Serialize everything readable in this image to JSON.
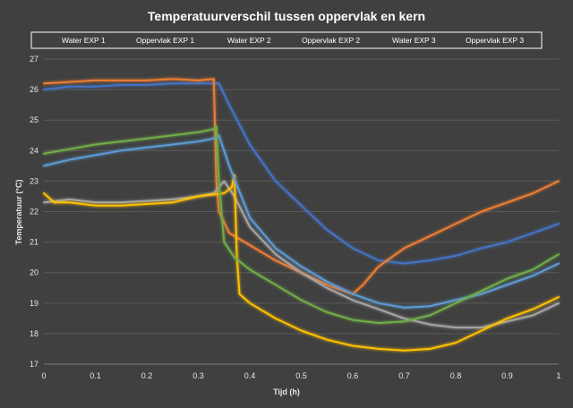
{
  "chart_data": {
    "type": "line",
    "title": "Temperatuurverschil tussen oppervlak en kern",
    "xlabel": "Tijd (h)",
    "ylabel": "Temperatuur (°C)",
    "xlim": [
      0,
      1
    ],
    "ylim": [
      17,
      27
    ],
    "x_ticks": [
      "0",
      "0.1",
      "0.2",
      "0.3",
      "0.4",
      "0.5",
      "0.6",
      "0.7",
      "0.8",
      "0.9",
      "1"
    ],
    "y_ticks": [
      "17",
      "18",
      "19",
      "20",
      "21",
      "22",
      "23",
      "24",
      "25",
      "26",
      "27"
    ],
    "grid": true,
    "legend_position": "top",
    "series": [
      {
        "name": "Water EXP 1",
        "color": "#4472c4",
        "points": [
          [
            0,
            26.0
          ],
          [
            0.05,
            26.1
          ],
          [
            0.1,
            26.1
          ],
          [
            0.15,
            26.15
          ],
          [
            0.2,
            26.15
          ],
          [
            0.25,
            26.2
          ],
          [
            0.3,
            26.2
          ],
          [
            0.33,
            26.2
          ],
          [
            0.34,
            26.2
          ],
          [
            0.36,
            25.5
          ],
          [
            0.4,
            24.2
          ],
          [
            0.45,
            23.0
          ],
          [
            0.5,
            22.2
          ],
          [
            0.55,
            21.4
          ],
          [
            0.6,
            20.8
          ],
          [
            0.65,
            20.4
          ],
          [
            0.7,
            20.3
          ],
          [
            0.75,
            20.4
          ],
          [
            0.8,
            20.55
          ],
          [
            0.85,
            20.8
          ],
          [
            0.9,
            21.0
          ],
          [
            0.95,
            21.3
          ],
          [
            1.0,
            21.6
          ]
        ]
      },
      {
        "name": "Oppervlak EXP 1",
        "color": "#ed7d31",
        "points": [
          [
            0,
            26.2
          ],
          [
            0.05,
            26.25
          ],
          [
            0.1,
            26.3
          ],
          [
            0.15,
            26.3
          ],
          [
            0.2,
            26.3
          ],
          [
            0.25,
            26.35
          ],
          [
            0.3,
            26.3
          ],
          [
            0.33,
            26.35
          ],
          [
            0.335,
            23.0
          ],
          [
            0.34,
            22.0
          ],
          [
            0.36,
            21.3
          ],
          [
            0.4,
            20.9
          ],
          [
            0.45,
            20.4
          ],
          [
            0.5,
            20.0
          ],
          [
            0.55,
            19.6
          ],
          [
            0.6,
            19.3
          ],
          [
            0.62,
            19.6
          ],
          [
            0.65,
            20.2
          ],
          [
            0.7,
            20.8
          ],
          [
            0.75,
            21.2
          ],
          [
            0.8,
            21.6
          ],
          [
            0.85,
            22.0
          ],
          [
            0.9,
            22.3
          ],
          [
            0.95,
            22.6
          ],
          [
            1.0,
            23.0
          ]
        ]
      },
      {
        "name": "Water EXP 2",
        "color": "#a5a5a5",
        "points": [
          [
            0,
            22.3
          ],
          [
            0.05,
            22.4
          ],
          [
            0.1,
            22.3
          ],
          [
            0.15,
            22.3
          ],
          [
            0.2,
            22.35
          ],
          [
            0.25,
            22.4
          ],
          [
            0.3,
            22.5
          ],
          [
            0.33,
            22.6
          ],
          [
            0.35,
            23.0
          ],
          [
            0.37,
            22.5
          ],
          [
            0.4,
            21.5
          ],
          [
            0.45,
            20.6
          ],
          [
            0.5,
            20.0
          ],
          [
            0.55,
            19.5
          ],
          [
            0.6,
            19.1
          ],
          [
            0.65,
            18.8
          ],
          [
            0.7,
            18.5
          ],
          [
            0.75,
            18.3
          ],
          [
            0.8,
            18.2
          ],
          [
            0.85,
            18.2
          ],
          [
            0.9,
            18.4
          ],
          [
            0.95,
            18.6
          ],
          [
            1.0,
            19.0
          ]
        ]
      },
      {
        "name": "Oppervlak EXP 2",
        "color": "#ffc000",
        "points": [
          [
            0,
            22.6
          ],
          [
            0.02,
            22.3
          ],
          [
            0.05,
            22.3
          ],
          [
            0.1,
            22.2
          ],
          [
            0.15,
            22.2
          ],
          [
            0.2,
            22.25
          ],
          [
            0.25,
            22.3
          ],
          [
            0.3,
            22.5
          ],
          [
            0.35,
            22.6
          ],
          [
            0.365,
            22.8
          ],
          [
            0.37,
            23.2
          ],
          [
            0.375,
            20.5
          ],
          [
            0.38,
            19.3
          ],
          [
            0.4,
            19.0
          ],
          [
            0.45,
            18.5
          ],
          [
            0.5,
            18.1
          ],
          [
            0.55,
            17.8
          ],
          [
            0.6,
            17.6
          ],
          [
            0.65,
            17.5
          ],
          [
            0.7,
            17.45
          ],
          [
            0.75,
            17.5
          ],
          [
            0.8,
            17.7
          ],
          [
            0.85,
            18.1
          ],
          [
            0.9,
            18.5
          ],
          [
            0.95,
            18.8
          ],
          [
            1.0,
            19.2
          ]
        ]
      },
      {
        "name": "Water EXP 3",
        "color": "#5b9bd5",
        "points": [
          [
            0,
            23.5
          ],
          [
            0.05,
            23.7
          ],
          [
            0.1,
            23.85
          ],
          [
            0.15,
            24.0
          ],
          [
            0.2,
            24.1
          ],
          [
            0.25,
            24.2
          ],
          [
            0.3,
            24.3
          ],
          [
            0.33,
            24.4
          ],
          [
            0.34,
            24.5
          ],
          [
            0.36,
            23.5
          ],
          [
            0.4,
            21.8
          ],
          [
            0.45,
            20.8
          ],
          [
            0.5,
            20.2
          ],
          [
            0.55,
            19.7
          ],
          [
            0.6,
            19.3
          ],
          [
            0.65,
            19.0
          ],
          [
            0.7,
            18.85
          ],
          [
            0.75,
            18.9
          ],
          [
            0.8,
            19.1
          ],
          [
            0.85,
            19.3
          ],
          [
            0.9,
            19.6
          ],
          [
            0.95,
            19.9
          ],
          [
            1.0,
            20.3
          ]
        ]
      },
      {
        "name": "Oppervlak EXP 3",
        "color": "#70ad47",
        "points": [
          [
            0,
            23.9
          ],
          [
            0.05,
            24.05
          ],
          [
            0.1,
            24.2
          ],
          [
            0.15,
            24.3
          ],
          [
            0.2,
            24.4
          ],
          [
            0.25,
            24.5
          ],
          [
            0.3,
            24.6
          ],
          [
            0.33,
            24.7
          ],
          [
            0.335,
            24.8
          ],
          [
            0.34,
            23.0
          ],
          [
            0.35,
            21.0
          ],
          [
            0.37,
            20.5
          ],
          [
            0.4,
            20.1
          ],
          [
            0.45,
            19.6
          ],
          [
            0.5,
            19.1
          ],
          [
            0.55,
            18.7
          ],
          [
            0.6,
            18.45
          ],
          [
            0.65,
            18.35
          ],
          [
            0.7,
            18.4
          ],
          [
            0.75,
            18.6
          ],
          [
            0.8,
            19.0
          ],
          [
            0.85,
            19.4
          ],
          [
            0.9,
            19.8
          ],
          [
            0.95,
            20.1
          ],
          [
            1.0,
            20.6
          ]
        ]
      }
    ]
  }
}
